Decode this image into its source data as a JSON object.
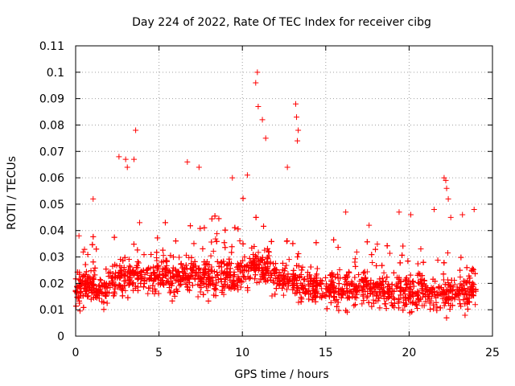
{
  "chart_data": {
    "type": "scatter",
    "title": "Day 224 of 2022, Rate Of TEC Index for receiver cibg",
    "xlabel": "GPS time / hours",
    "ylabel": "ROTI / TECUs",
    "xlim": [
      0,
      25
    ],
    "ylim": [
      0,
      0.11
    ],
    "xticks": [
      0,
      5,
      10,
      15,
      20,
      25
    ],
    "yticks": [
      0,
      0.01,
      0.02,
      0.03,
      0.04,
      0.05,
      0.06,
      0.07,
      0.08,
      0.09,
      0.1,
      0.11
    ],
    "xtick_labels": [
      "0",
      "5",
      "10",
      "15",
      "20",
      "25"
    ],
    "ytick_labels": [
      "0",
      "0.01",
      "0.02",
      "0.03",
      "0.04",
      "0.05",
      "0.06",
      "0.07",
      "0.08",
      "0.09",
      "0.1",
      "0.11"
    ],
    "grid": true,
    "marker": "+",
    "color": "#ff0000",
    "series": [
      {
        "x": [
          0.0,
          0.25,
          0.5,
          0.75,
          1.0,
          1.25,
          1.5,
          1.75,
          2.0,
          2.25,
          2.5,
          2.75,
          3.0,
          3.25,
          3.5,
          3.75,
          4.0,
          4.25,
          4.5,
          4.75,
          5.0,
          5.25,
          5.5,
          5.75,
          6.0,
          6.25,
          6.5,
          6.75,
          7.0,
          7.25,
          7.5,
          7.75,
          8.0,
          8.25,
          8.5,
          8.75,
          9.0,
          9.25,
          9.5,
          9.75,
          10.0,
          10.25,
          10.5,
          10.75,
          11.0,
          11.25,
          11.5,
          11.75,
          12.0,
          12.25,
          12.5,
          12.75,
          13.0,
          13.25,
          13.5,
          13.75,
          14.0,
          14.25,
          14.5,
          14.75,
          15.0,
          15.25,
          15.5,
          15.75,
          16.0,
          16.25,
          16.5,
          16.75,
          17.0,
          17.25,
          17.5,
          17.75,
          18.0,
          18.25,
          18.5,
          18.75,
          19.0,
          19.25,
          19.5,
          19.75,
          20.0,
          20.25,
          20.5,
          20.75,
          21.0,
          21.25,
          21.5,
          21.75,
          22.0,
          22.25,
          22.5,
          22.75,
          23.0,
          23.25,
          23.5,
          23.75,
          24.0
        ],
        "y": [
          0.017,
          0.019,
          0.018,
          0.02,
          0.021,
          0.018,
          0.017,
          0.019,
          0.02,
          0.021,
          0.022,
          0.023,
          0.021,
          0.022,
          0.024,
          0.023,
          0.022,
          0.021,
          0.023,
          0.022,
          0.022,
          0.023,
          0.024,
          0.022,
          0.021,
          0.023,
          0.024,
          0.022,
          0.023,
          0.024,
          0.022,
          0.023,
          0.022,
          0.021,
          0.023,
          0.024,
          0.022,
          0.023,
          0.021,
          0.022,
          0.024,
          0.025,
          0.026,
          0.027,
          0.027,
          0.026,
          0.025,
          0.023,
          0.022,
          0.021,
          0.022,
          0.021,
          0.02,
          0.021,
          0.02,
          0.019,
          0.019,
          0.018,
          0.019,
          0.018,
          0.018,
          0.019,
          0.018,
          0.017,
          0.018,
          0.018,
          0.017,
          0.018,
          0.019,
          0.018,
          0.017,
          0.018,
          0.017,
          0.018,
          0.017,
          0.016,
          0.017,
          0.018,
          0.017,
          0.016,
          0.017,
          0.016,
          0.017,
          0.018,
          0.017,
          0.016,
          0.017,
          0.016,
          0.017,
          0.016,
          0.017,
          0.016,
          0.017,
          0.016,
          0.017,
          0.018,
          0.017
        ]
      }
    ],
    "notable_points": [
      {
        "x": 0.2,
        "y": 0.038
      },
      {
        "x": 1.05,
        "y": 0.052
      },
      {
        "x": 2.6,
        "y": 0.068
      },
      {
        "x": 3.0,
        "y": 0.067
      },
      {
        "x": 3.1,
        "y": 0.064
      },
      {
        "x": 3.5,
        "y": 0.067
      },
      {
        "x": 3.6,
        "y": 0.078
      },
      {
        "x": 6.7,
        "y": 0.066
      },
      {
        "x": 7.4,
        "y": 0.064
      },
      {
        "x": 9.4,
        "y": 0.06
      },
      {
        "x": 10.3,
        "y": 0.061
      },
      {
        "x": 10.8,
        "y": 0.096
      },
      {
        "x": 10.9,
        "y": 0.1
      },
      {
        "x": 10.95,
        "y": 0.087
      },
      {
        "x": 11.2,
        "y": 0.082
      },
      {
        "x": 11.4,
        "y": 0.075
      },
      {
        "x": 12.7,
        "y": 0.064
      },
      {
        "x": 13.2,
        "y": 0.088
      },
      {
        "x": 13.25,
        "y": 0.083
      },
      {
        "x": 13.3,
        "y": 0.074
      },
      {
        "x": 13.35,
        "y": 0.078
      },
      {
        "x": 16.2,
        "y": 0.047
      },
      {
        "x": 17.6,
        "y": 0.042
      },
      {
        "x": 19.4,
        "y": 0.047
      },
      {
        "x": 20.1,
        "y": 0.046
      },
      {
        "x": 21.5,
        "y": 0.048
      },
      {
        "x": 22.1,
        "y": 0.06
      },
      {
        "x": 22.2,
        "y": 0.059
      },
      {
        "x": 22.25,
        "y": 0.056
      },
      {
        "x": 22.35,
        "y": 0.052
      },
      {
        "x": 22.5,
        "y": 0.045
      },
      {
        "x": 23.2,
        "y": 0.046
      },
      {
        "x": 23.9,
        "y": 0.048
      }
    ]
  }
}
